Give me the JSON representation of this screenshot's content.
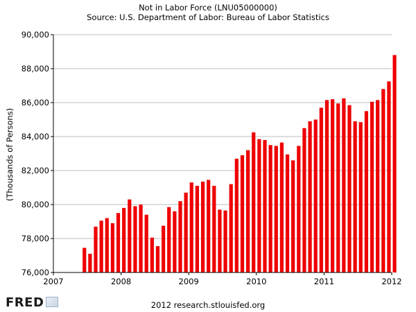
{
  "chart_data": {
    "type": "bar",
    "title": "Not in Labor Force (LNU05000000)",
    "subtitle": "Source: U.S. Department of Labor: Bureau of Labor Statistics",
    "ylabel": "(Thousands of Persons)",
    "xlabel": "",
    "ylim": [
      76000,
      90000
    ],
    "xlim": [
      "2007-01",
      "2012-01"
    ],
    "yticks": [
      76000,
      78000,
      80000,
      82000,
      84000,
      86000,
      88000,
      90000
    ],
    "ytick_labels": [
      "76,000",
      "78,000",
      "80,000",
      "82,000",
      "84,000",
      "86,000",
      "88,000",
      "90,000"
    ],
    "xticks": [
      "2007-01",
      "2008-01",
      "2009-01",
      "2010-01",
      "2011-01",
      "2012-01"
    ],
    "xtick_labels": [
      "2007",
      "2008",
      "2009",
      "2010",
      "2011",
      "2012"
    ],
    "grid": true,
    "bar_color": "#ee0000",
    "categories": [
      "2007-06",
      "2007-07",
      "2007-08",
      "2007-09",
      "2007-10",
      "2007-11",
      "2007-12",
      "2008-01",
      "2008-02",
      "2008-03",
      "2008-04",
      "2008-05",
      "2008-06",
      "2008-07",
      "2008-08",
      "2008-09",
      "2008-10",
      "2008-11",
      "2008-12",
      "2009-01",
      "2009-02",
      "2009-03",
      "2009-04",
      "2009-05",
      "2009-06",
      "2009-07",
      "2009-08",
      "2009-09",
      "2009-10",
      "2009-11",
      "2009-12",
      "2010-01",
      "2010-02",
      "2010-03",
      "2010-04",
      "2010-05",
      "2010-06",
      "2010-07",
      "2010-08",
      "2010-09",
      "2010-10",
      "2010-11",
      "2010-12",
      "2011-01",
      "2011-02",
      "2011-03",
      "2011-04",
      "2011-05",
      "2011-06",
      "2011-07",
      "2011-08",
      "2011-09",
      "2011-10",
      "2011-11",
      "2011-12",
      "2012-01"
    ],
    "values": [
      77450,
      77100,
      78700,
      79050,
      79200,
      78900,
      79500,
      79800,
      80300,
      79900,
      80000,
      79400,
      78050,
      77550,
      78750,
      79850,
      79600,
      80200,
      80700,
      81300,
      81100,
      81350,
      81450,
      81100,
      79700,
      79650,
      81200,
      82700,
      82900,
      83200,
      84250,
      83850,
      83800,
      83500,
      83450,
      83650,
      82950,
      82600,
      83450,
      84500,
      84900,
      85000,
      85700,
      86150,
      86200,
      85950,
      86250,
      85850,
      84900,
      84850,
      85500,
      86050,
      86150,
      86800,
      87250,
      88800
    ]
  },
  "footer": {
    "logo": "FRED",
    "logo_icon": "chart-line-icon",
    "credit": "2012 research.stlouisfed.org"
  }
}
